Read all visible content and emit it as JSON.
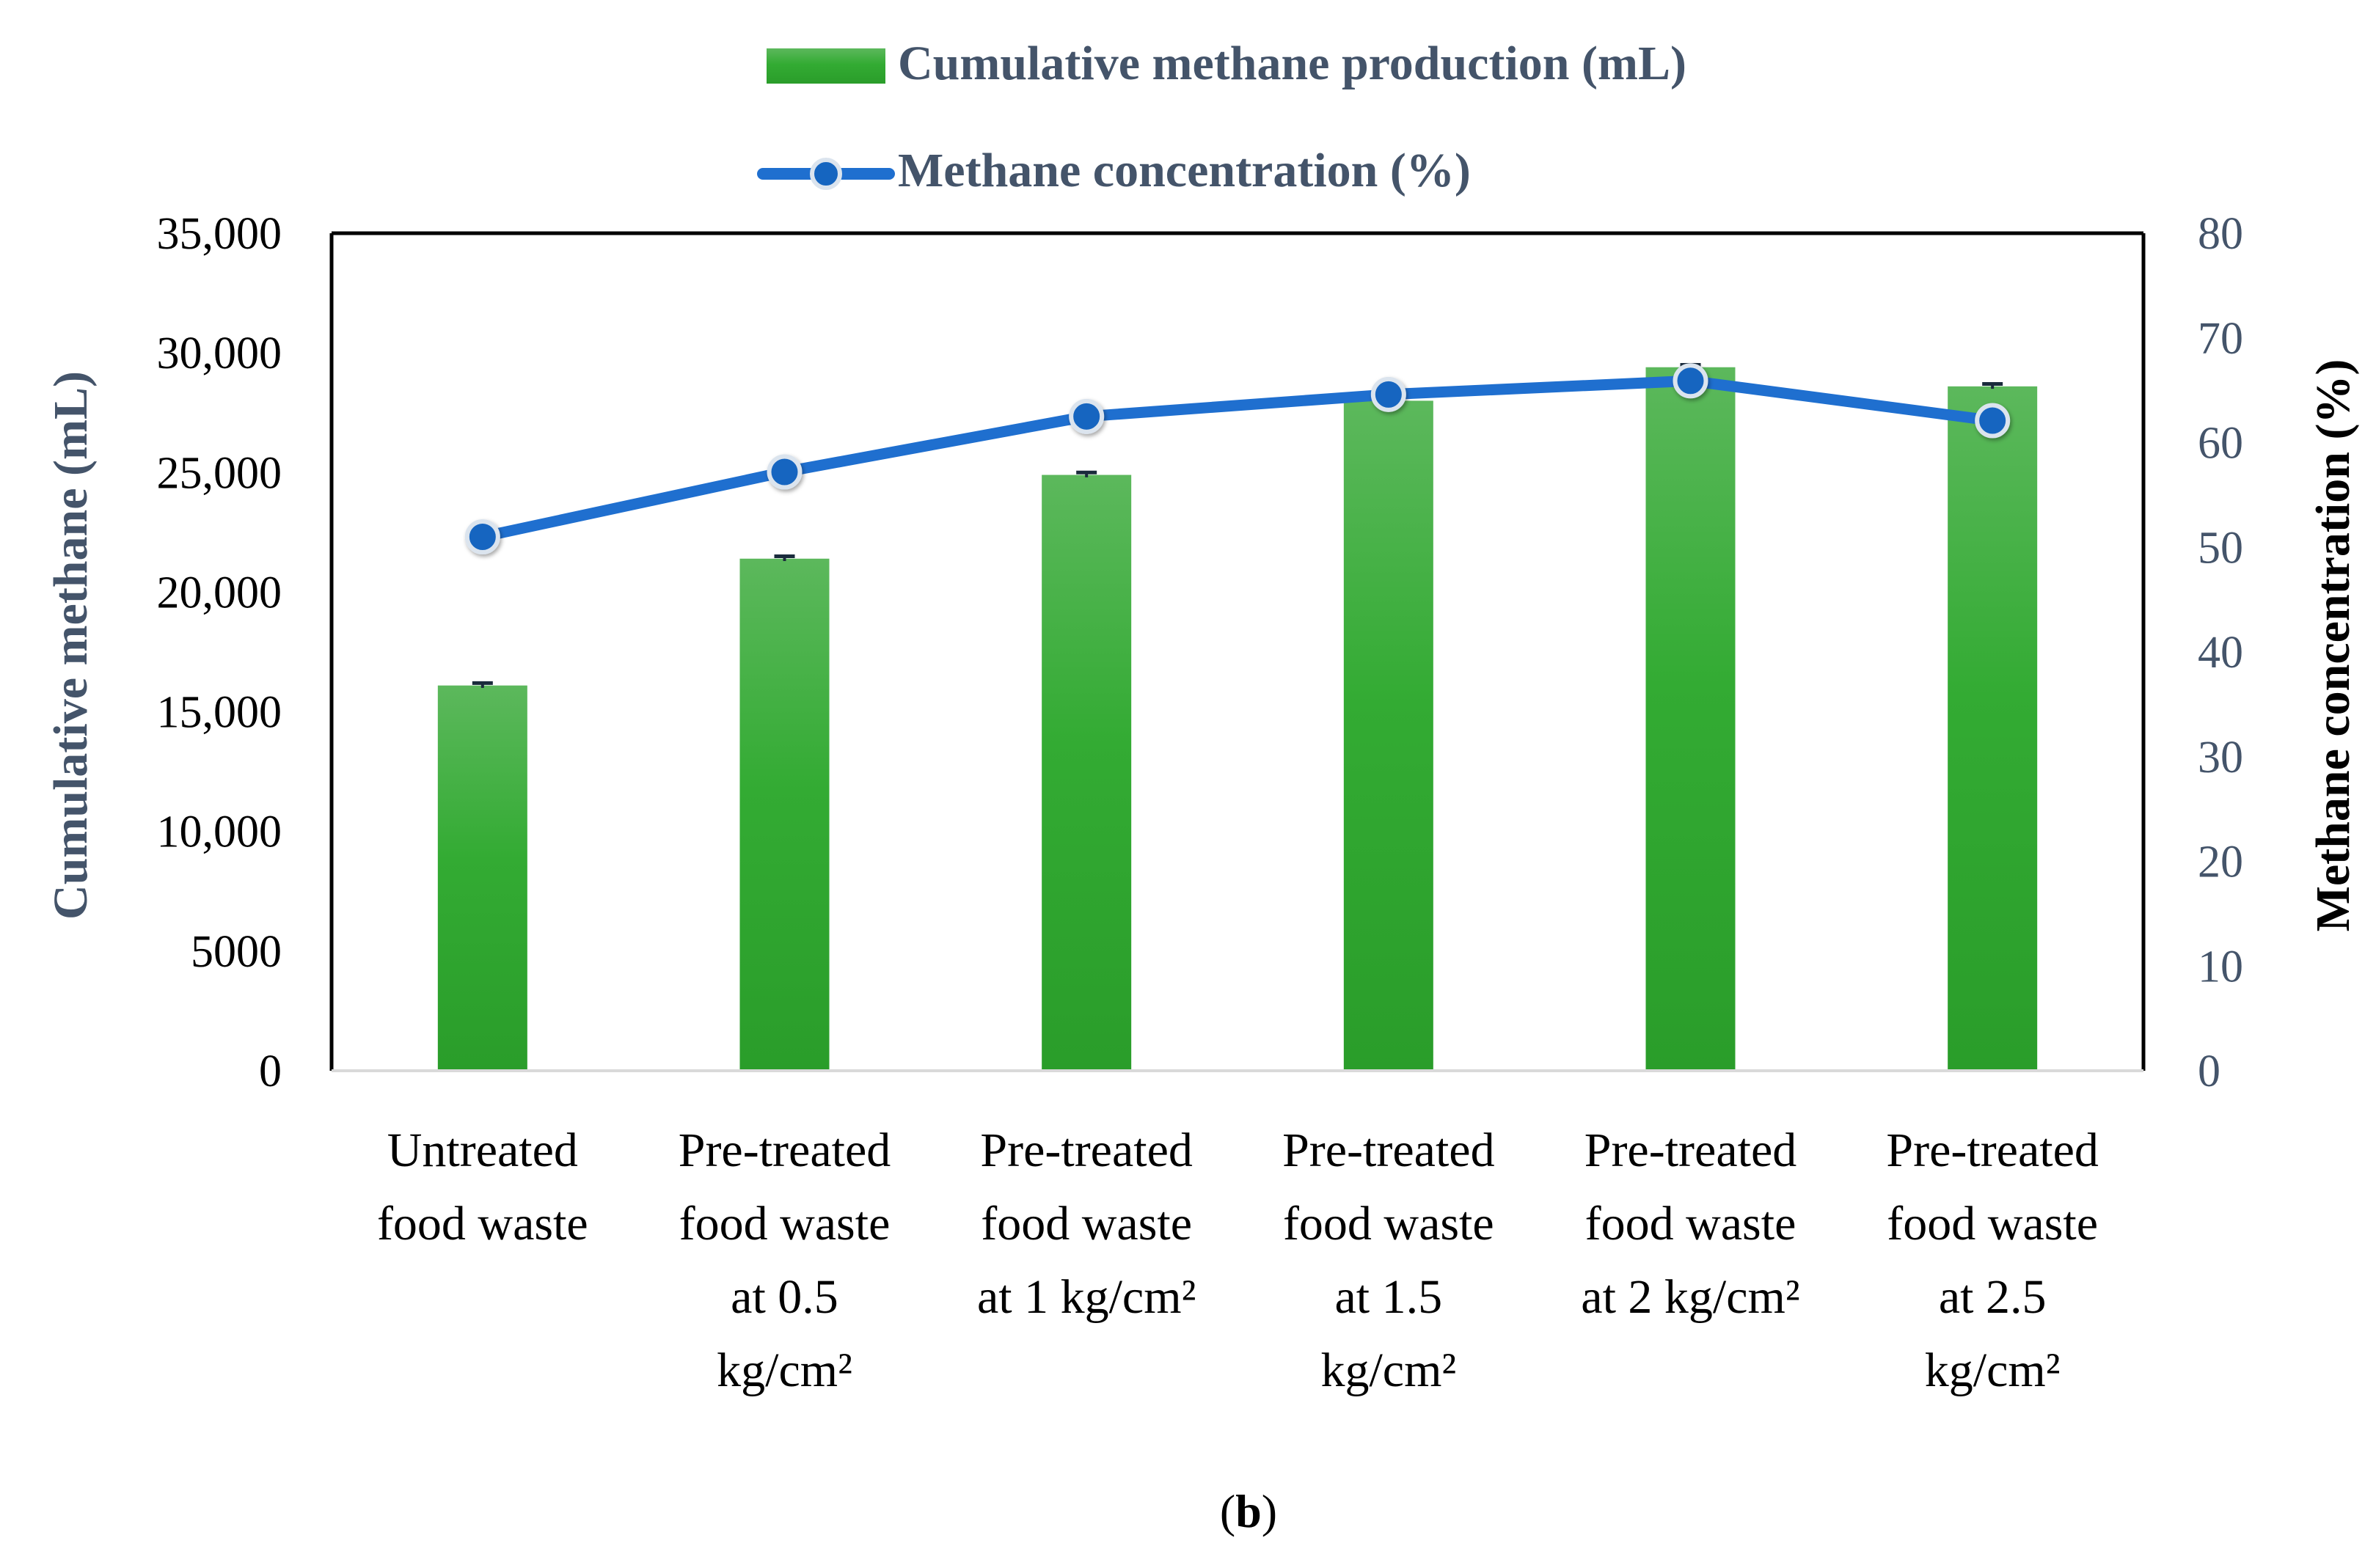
{
  "chart_data": {
    "type": "bar",
    "categories": [
      [
        "Untreated",
        "food waste"
      ],
      [
        "Pre-treated",
        "food waste",
        "at 0.5",
        "kg/cm²"
      ],
      [
        "Pre-treated",
        "food waste",
        "at 1 kg/cm²"
      ],
      [
        "Pre-treated",
        "food waste",
        "at 1.5",
        "kg/cm²"
      ],
      [
        "Pre-treated",
        "food waste",
        "at 2 kg/cm²"
      ],
      [
        "Pre-treated",
        "food waste",
        "at 2.5",
        "kg/cm²"
      ]
    ],
    "series": [
      {
        "name": "Cumulative methane production (mL)",
        "type": "bar",
        "axis": "left",
        "values": [
          16100,
          21400,
          24900,
          28000,
          29400,
          28600
        ],
        "error": [
          100,
          100,
          100,
          100,
          100,
          100
        ]
      },
      {
        "name": "Methane concentration (%)",
        "type": "line",
        "axis": "right",
        "values": [
          51,
          57.2,
          62.5,
          64.6,
          65.9,
          62.1
        ]
      }
    ],
    "ylabel": "Cumulative methane (mL)",
    "y2label": "Methane concentration (%)",
    "ylim": [
      0,
      35000
    ],
    "y2lim": [
      0,
      80
    ],
    "yticks": [
      "0",
      "5000",
      "10,000",
      "15,000",
      "20,000",
      "25,000",
      "30,000",
      "35,000"
    ],
    "y2ticks": [
      "0",
      "10",
      "20",
      "30",
      "40",
      "50",
      "60",
      "70",
      "80"
    ],
    "legend_position": "top",
    "grid": false
  },
  "caption": {
    "open": "(",
    "letter": "b",
    "close": ")"
  },
  "colors": {
    "bar_top": "#5cb85c",
    "bar_bottom": "#2a9d2a",
    "line": "#1f6fcf",
    "marker": "#1565c0",
    "axis_text": "#44546a",
    "frame": "#000000"
  }
}
